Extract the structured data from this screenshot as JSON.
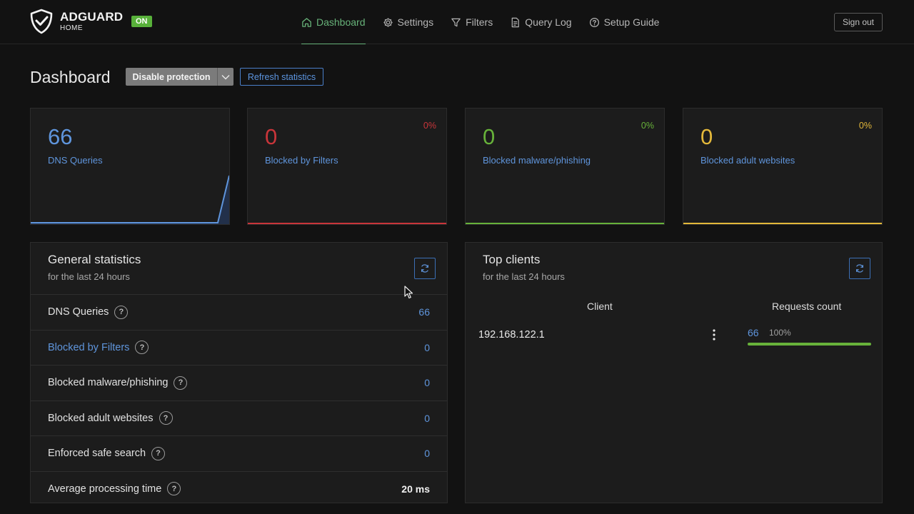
{
  "header": {
    "logo_name": "ADGUARD",
    "logo_sub": "HOME",
    "status_badge": "ON",
    "nav": [
      {
        "label": "Dashboard",
        "icon": "home-icon",
        "active": true
      },
      {
        "label": "Settings",
        "icon": "gear-icon",
        "active": false
      },
      {
        "label": "Filters",
        "icon": "filter-icon",
        "active": false
      },
      {
        "label": "Query Log",
        "icon": "document-icon",
        "active": false
      },
      {
        "label": "Setup Guide",
        "icon": "help-circle-icon",
        "active": false
      }
    ],
    "sign_out": "Sign out"
  },
  "page": {
    "title": "Dashboard",
    "disable_protection": "Disable protection",
    "refresh_statistics": "Refresh statistics"
  },
  "cards": [
    {
      "value": "66",
      "label": "DNS Queries",
      "percent": "",
      "color": "#5f95dc"
    },
    {
      "value": "0",
      "label": "Blocked by Filters",
      "percent": "0%",
      "color": "#c9353a"
    },
    {
      "value": "0",
      "label": "Blocked malware/phishing",
      "percent": "0%",
      "color": "#67b23a"
    },
    {
      "value": "0",
      "label": "Blocked adult websites",
      "percent": "0%",
      "color": "#e3b83a"
    }
  ],
  "general_stats": {
    "title": "General statistics",
    "subtitle": "for the last 24 hours",
    "rows": [
      {
        "name": "DNS Queries",
        "value": "66"
      },
      {
        "name": "Blocked by Filters",
        "value": "0"
      },
      {
        "name": "Blocked malware/phishing",
        "value": "0"
      },
      {
        "name": "Blocked adult websites",
        "value": "0"
      },
      {
        "name": "Enforced safe search",
        "value": "0"
      },
      {
        "name": "Average processing time",
        "value": "20 ms"
      }
    ],
    "help_glyph": "?"
  },
  "top_clients": {
    "title": "Top clients",
    "subtitle": "for the last 24 hours",
    "col_client": "Client",
    "col_requests": "Requests count",
    "clients": [
      {
        "ip": "192.168.122.1",
        "count": "66",
        "percent": "100%",
        "share": 1.0
      }
    ]
  }
}
